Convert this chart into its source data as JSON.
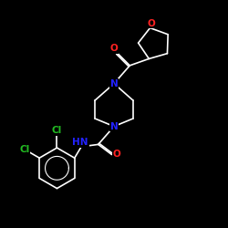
{
  "bg_color": "#000000",
  "bond_color": "#ffffff",
  "atom_colors": {
    "O": "#ff2222",
    "N": "#2222ff",
    "Cl": "#22bb22",
    "C": "#ffffff"
  },
  "lw": 1.2,
  "fontsize": 7.5
}
